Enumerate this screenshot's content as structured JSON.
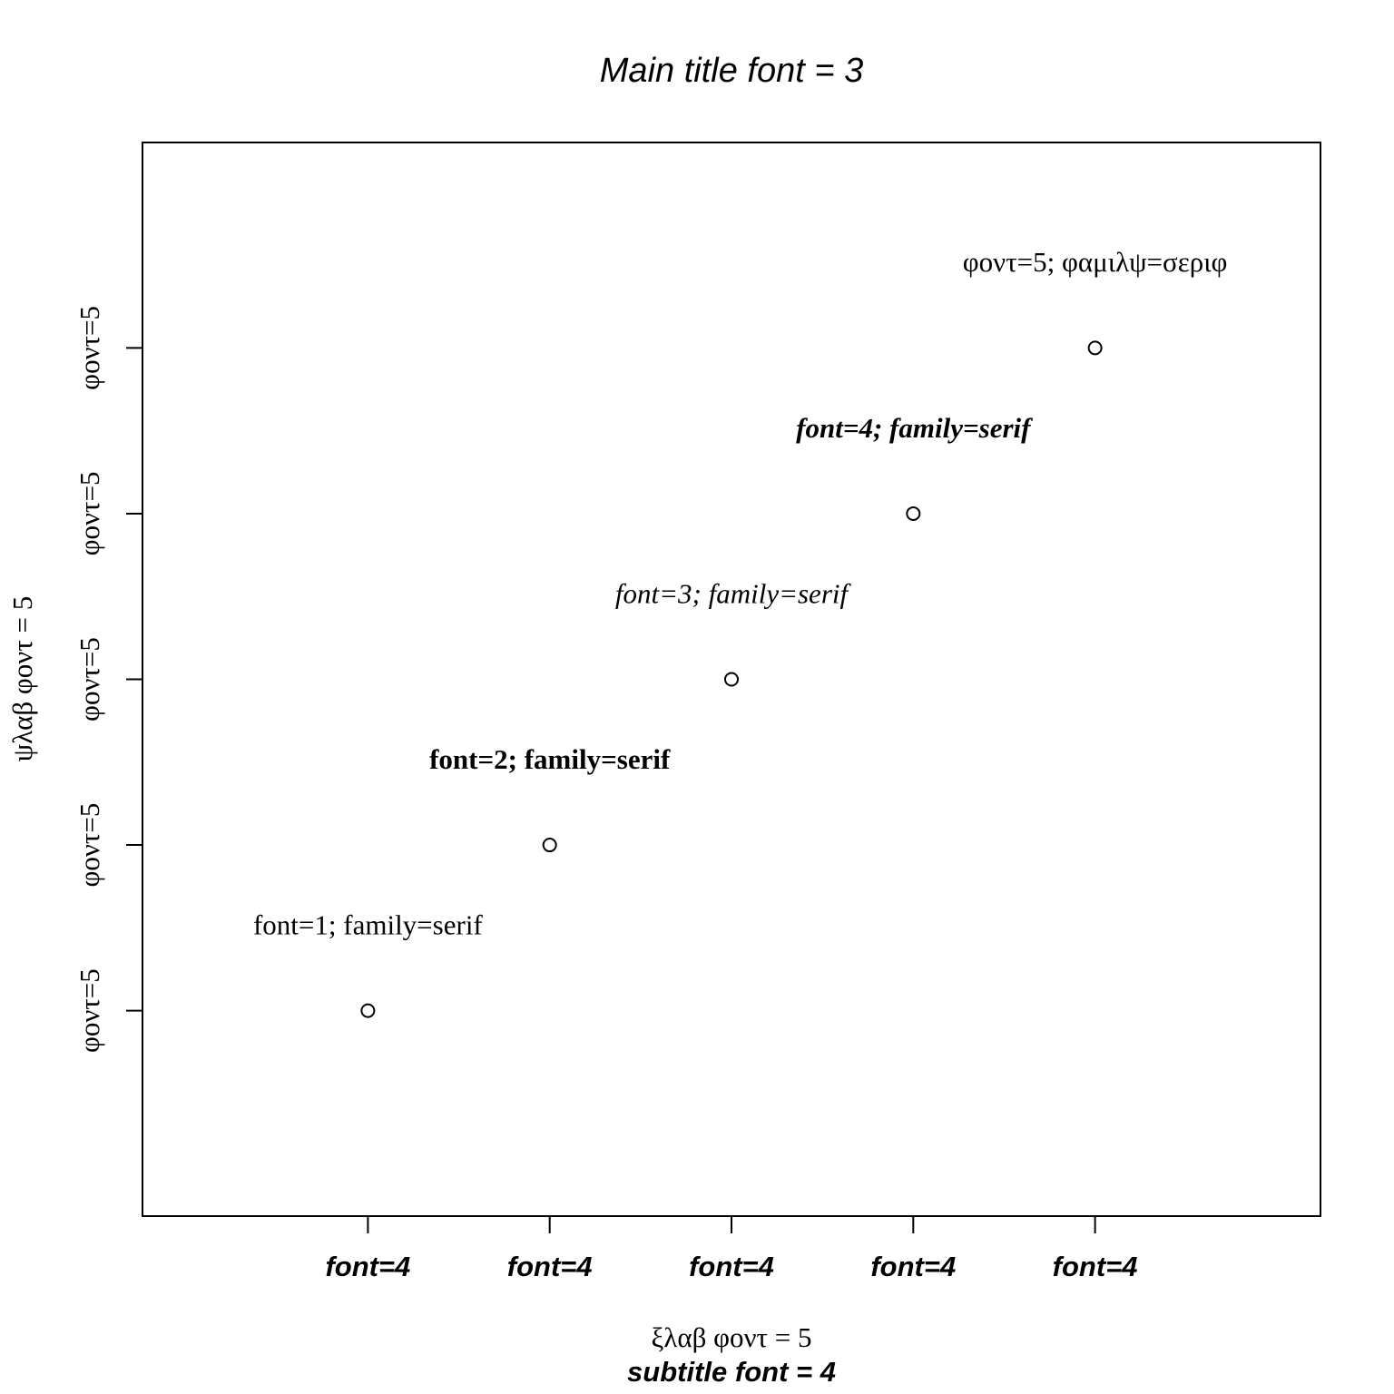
{
  "chart_data": {
    "type": "scatter",
    "title": "Main title font = 3",
    "xlabel": "ξλαβ φοντ = 5",
    "ylabel": "ψλαβ φοντ = 5",
    "subtitle": "subtitle font = 4",
    "x": [
      1,
      2,
      3,
      4,
      5
    ],
    "y": [
      1,
      2,
      3,
      4,
      5
    ],
    "xlim": [
      -0.24,
      6.24
    ],
    "ylim": [
      -0.24,
      6.24
    ],
    "x_ticks": [
      1,
      2,
      3,
      4,
      5
    ],
    "x_tick_labels": [
      "font=4",
      "font=4",
      "font=4",
      "font=4",
      "font=4"
    ],
    "y_ticks": [
      1,
      2,
      3,
      4,
      5
    ],
    "y_tick_labels": [
      "φοντ=5",
      "φοντ=5",
      "φοντ=5",
      "φοντ=5",
      "φοντ=5"
    ],
    "annotations": [
      {
        "x": 1,
        "y": 1.5,
        "text": "font=1; family=serif",
        "font": 1
      },
      {
        "x": 2,
        "y": 2.5,
        "text": "font=2; family=serif",
        "font": 2
      },
      {
        "x": 3,
        "y": 3.5,
        "text": "font=3; family=serif",
        "font": 3
      },
      {
        "x": 4,
        "y": 4.5,
        "text": "font=4; family=serif",
        "font": 4
      },
      {
        "x": 5,
        "y": 5.5,
        "text": "φοντ=5; φαμιλψ=σεριφ",
        "font": 5
      }
    ],
    "marker": "open-circle",
    "grid": false,
    "legend": "none",
    "colors": {
      "points": "#000000",
      "axes": "#000000",
      "background": "#ffffff"
    }
  }
}
